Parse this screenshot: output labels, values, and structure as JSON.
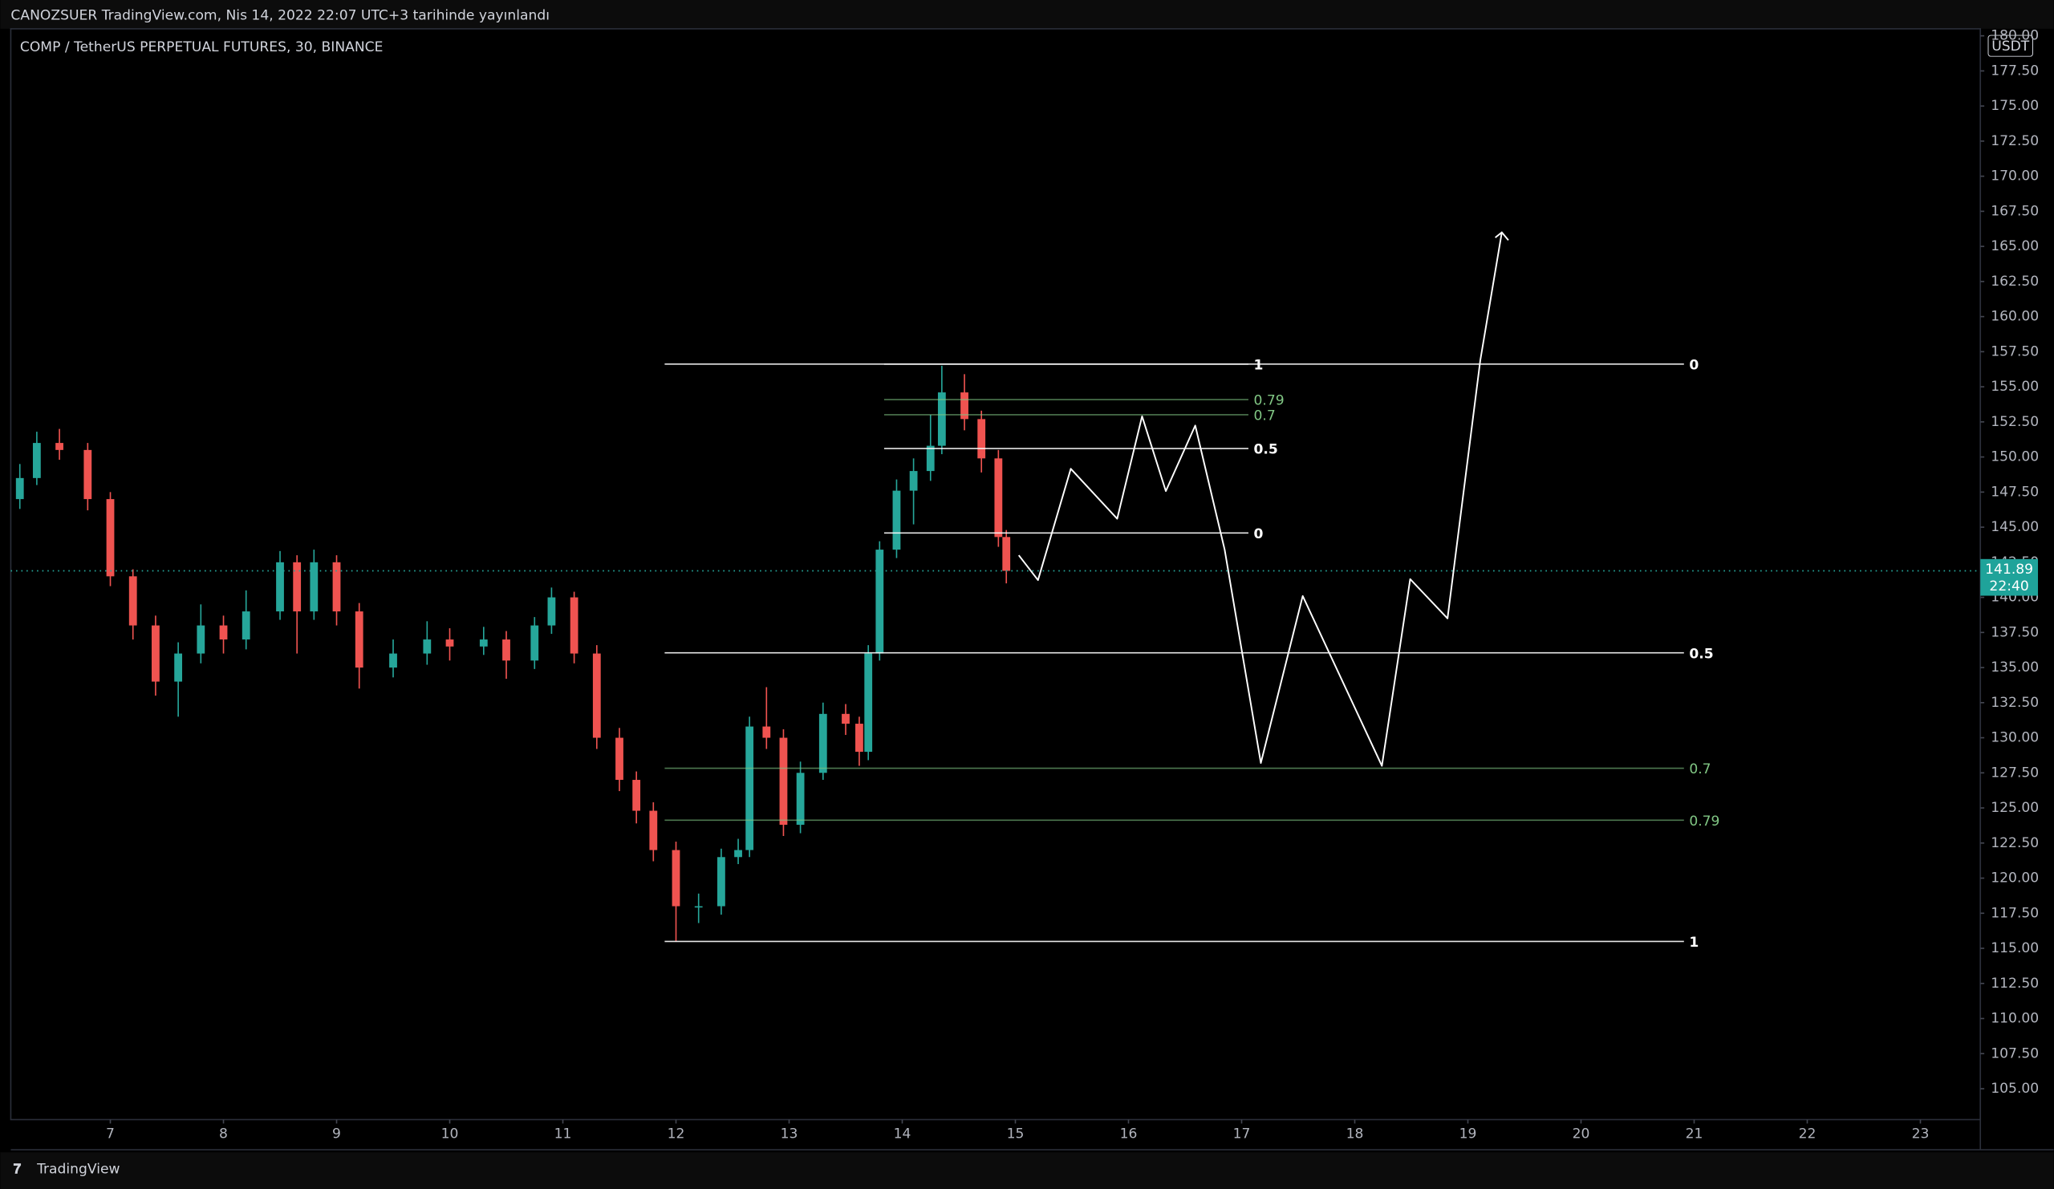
{
  "chart_data": {
    "type": "candlestick",
    "header": "CANOZSUER TradingView.com, Nis 14, 2022 22:07 UTC+3 tarihinde yayınlandı",
    "title": "COMP / TetherUS PERPETUAL FUTURES, 30, BINANCE",
    "currency": "USDT",
    "countdown": "22:40",
    "footer": "TradingView",
    "up_color": "#26a69a",
    "down_color": "#ef5350",
    "grid": false,
    "xlim": [
      6.12,
      23.53
    ],
    "ylim": [
      102.8,
      180.5
    ],
    "xticks": [
      7,
      8,
      9,
      10,
      11,
      12,
      13,
      14,
      15,
      16,
      17,
      18,
      19,
      20,
      21,
      22,
      23
    ],
    "yticks": [
      {
        "value": 105,
        "label": "105.00"
      },
      {
        "value": 107.5,
        "label": "107.50"
      },
      {
        "value": 110,
        "label": "110.00"
      },
      {
        "value": 112.5,
        "label": "112.50"
      },
      {
        "value": 115,
        "label": "115.00"
      },
      {
        "value": 117.5,
        "label": "117.50"
      },
      {
        "value": 120,
        "label": "120.00"
      },
      {
        "value": 122.5,
        "label": "122.50"
      },
      {
        "value": 125,
        "label": "125.00"
      },
      {
        "value": 127.5,
        "label": "127.50"
      },
      {
        "value": 130,
        "label": "130.00"
      },
      {
        "value": 132.5,
        "label": "132.50"
      },
      {
        "value": 135,
        "label": "135.00"
      },
      {
        "value": 137.5,
        "label": "137.50"
      },
      {
        "value": 140,
        "label": "140.00"
      },
      {
        "value": 142.5,
        "label": "142.50"
      },
      {
        "value": 145,
        "label": "145.00"
      },
      {
        "value": 147.5,
        "label": "147.50"
      },
      {
        "value": 150,
        "label": "150.00"
      },
      {
        "value": 152.5,
        "label": "152.50"
      },
      {
        "value": 155,
        "label": "155.00"
      },
      {
        "value": 157.5,
        "label": "157.50"
      },
      {
        "value": 160,
        "label": "160.00"
      },
      {
        "value": 162.5,
        "label": "162.50"
      },
      {
        "value": 165,
        "label": "165.00"
      },
      {
        "value": 167.5,
        "label": "167.50"
      },
      {
        "value": 170,
        "label": "170.00"
      },
      {
        "value": 172.5,
        "label": "172.50"
      },
      {
        "value": 175,
        "label": "175.00"
      },
      {
        "value": 177.5,
        "label": "177.50"
      },
      {
        "value": 180,
        "label": "180.00"
      }
    ],
    "x": [
      6.2,
      6.35,
      6.55,
      6.8,
      7.0,
      7.2,
      7.4,
      7.6,
      7.8,
      8.0,
      8.2,
      8.5,
      8.65,
      8.8,
      9.0,
      9.2,
      9.5,
      9.8,
      10.0,
      10.3,
      10.5,
      10.75,
      10.9,
      11.1,
      11.3,
      11.5,
      11.65,
      11.8,
      12.0,
      12.2,
      12.4,
      12.55,
      12.65,
      12.8,
      12.95,
      13.1,
      13.3,
      13.5,
      13.62,
      13.7,
      13.8,
      13.95,
      14.1,
      14.25,
      14.35,
      14.55,
      14.7,
      14.85,
      14.92
    ],
    "open": [
      147,
      148.5,
      151,
      150.5,
      147,
      141.5,
      138,
      134,
      136,
      138,
      137,
      139,
      142.5,
      139,
      142.5,
      139,
      135,
      136,
      137,
      136.5,
      137,
      135.5,
      138,
      140,
      136,
      130,
      127,
      124.8,
      122,
      118,
      118,
      121.5,
      122,
      130.8,
      130,
      123.8,
      127.5,
      131.7,
      131,
      129,
      136,
      143.4,
      147.6,
      149,
      150.8,
      154.6,
      152.7,
      149.9,
      144.3
    ],
    "high": [
      149.5,
      151.8,
      152,
      151,
      147.5,
      142,
      138.7,
      136.8,
      139.5,
      138.7,
      140.5,
      143.3,
      143,
      143.4,
      143,
      139.6,
      137,
      138.3,
      137.8,
      137.9,
      137.6,
      138.6,
      140.7,
      140.4,
      136.6,
      130.7,
      127.6,
      125.4,
      122.6,
      118.9,
      122.1,
      122.8,
      131.5,
      133.6,
      130.6,
      128.3,
      132.5,
      132.4,
      131.5,
      136.6,
      144,
      148.4,
      149.9,
      153,
      156.5,
      155.9,
      153.3,
      150.5,
      144.8
    ],
    "low": [
      146.3,
      148,
      149.8,
      146.2,
      140.8,
      137,
      133,
      131.5,
      135.3,
      136,
      136.3,
      138.4,
      136,
      138.4,
      138,
      133.5,
      134.3,
      135.2,
      135.5,
      135.9,
      134.2,
      134.9,
      137.4,
      135.3,
      129.2,
      126.2,
      123.9,
      121.2,
      115.5,
      116.8,
      117.4,
      121,
      121.5,
      129.2,
      123,
      123.2,
      127,
      130.2,
      128,
      128.4,
      135.5,
      142.8,
      145.2,
      148.3,
      150.2,
      151.9,
      148.9,
      143.6,
      141
    ],
    "close": [
      148.5,
      151,
      150.5,
      147,
      141.5,
      138,
      134,
      136,
      138,
      137,
      139,
      142.5,
      139,
      142.5,
      139,
      135,
      136,
      137,
      136.5,
      137,
      135.5,
      138,
      140,
      136,
      130,
      127,
      124.8,
      122,
      118,
      118,
      121.5,
      122,
      130.8,
      130,
      123.8,
      127.5,
      131.7,
      131,
      129,
      136,
      143.4,
      147.6,
      149,
      150.8,
      154.6,
      152.7,
      149.9,
      144.3,
      141.89
    ],
    "fibs": [
      {
        "x_range": [
          11.9,
          20.91
        ],
        "levels": [
          {
            "level": 0,
            "price": 156.62,
            "color": "#ffffff"
          },
          {
            "level": 0.5,
            "price": 136.05,
            "color": "#ffffff"
          },
          {
            "level": 0.7,
            "price": 127.83,
            "color": "#81c784"
          },
          {
            "level": 0.79,
            "price": 124.13,
            "color": "#81c784"
          },
          {
            "level": 1,
            "price": 115.49,
            "color": "#ffffff"
          }
        ]
      },
      {
        "x_range": [
          13.84,
          17.06
        ],
        "levels": [
          {
            "level": 1,
            "price": 156.62,
            "color": "#ffffff"
          },
          {
            "level": 0.79,
            "price": 154.09,
            "color": "#81c784"
          },
          {
            "level": 0.7,
            "price": 153.01,
            "color": "#81c784"
          },
          {
            "level": 0.5,
            "price": 150.6,
            "color": "#ffffff"
          },
          {
            "level": 0,
            "price": 144.59,
            "color": "#ffffff"
          }
        ]
      }
    ],
    "projection": {
      "x": [
        15.03,
        15.2,
        15.49,
        15.9,
        16.12,
        16.33,
        16.59,
        16.85,
        17.17,
        17.54,
        18.24,
        18.49,
        18.82,
        19.11,
        19.3
      ],
      "y": [
        143.0,
        141.23,
        149.16,
        145.6,
        152.9,
        147.57,
        152.24,
        143.4,
        128.2,
        140.1,
        128.0,
        141.3,
        138.5,
        156.9,
        166.0
      ]
    }
  }
}
